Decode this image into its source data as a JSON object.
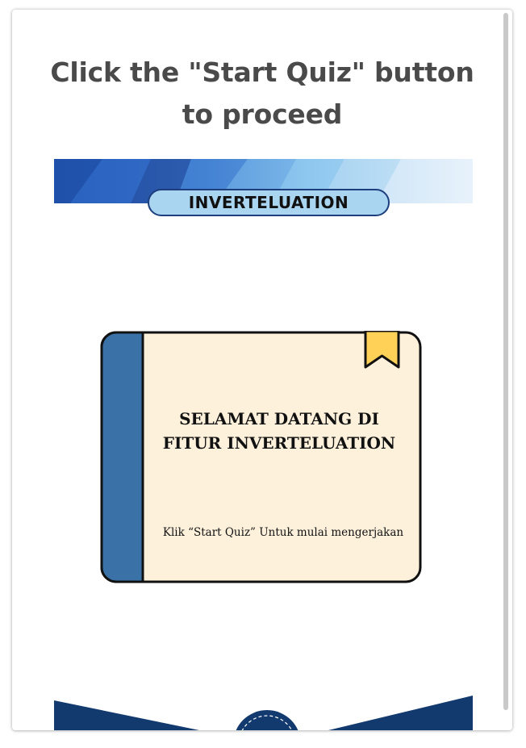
{
  "heading": "Click the \"Start Quiz\" button to proceed",
  "banner": {
    "title": "INVERTELUATION"
  },
  "card": {
    "title": "SELAMAT DATANG DI FITUR INVERTELUATION",
    "subtitle": "Klik “Start Quiz” Untuk mulai mengerjakan"
  },
  "colors": {
    "heading_text": "#4a4a4a",
    "banner_blue_dark": "#1f4fa3",
    "banner_blue_light": "#9fd0ee",
    "card_bg": "#fdf1dc",
    "card_spine": "#3a72a8",
    "bookmark": "#ffd257",
    "bottom_navy": "#123a6e"
  },
  "icons": {
    "bookmark": "bookmark-icon"
  }
}
